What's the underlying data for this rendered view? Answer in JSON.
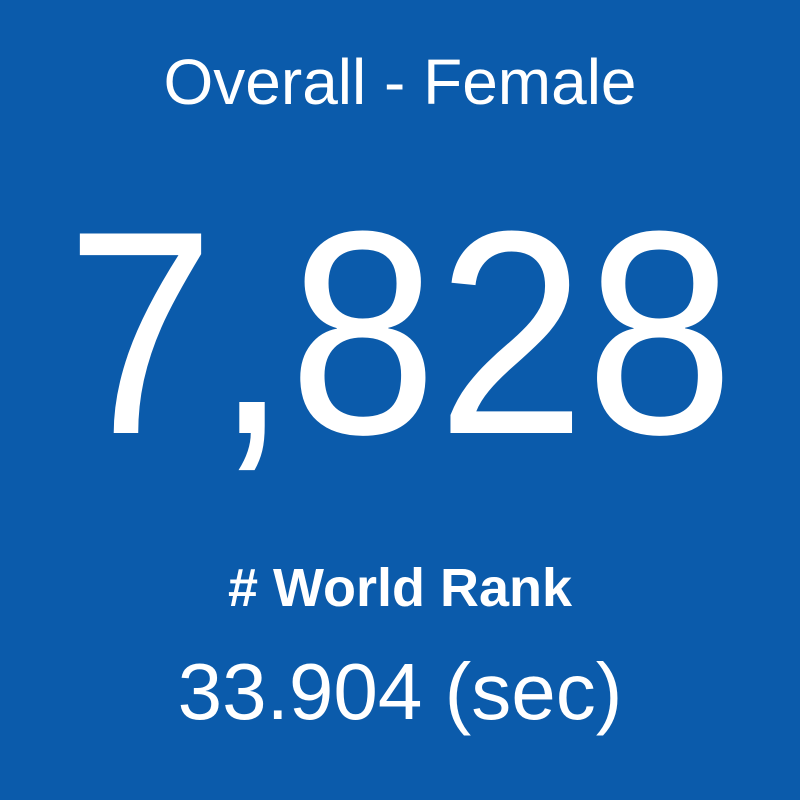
{
  "tile": {
    "title": "Overall - Female",
    "value": "7,828",
    "label": "# World Rank",
    "detail": "33.904 (sec)"
  }
}
